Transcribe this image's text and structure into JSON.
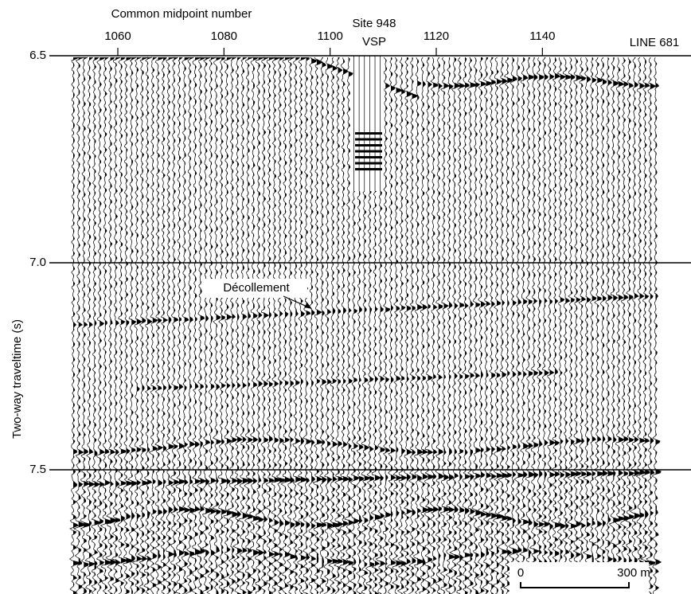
{
  "chart_data": {
    "type": "seismic",
    "x_label": "Common midpoint number",
    "y_label": "Two-way traveltime (s)",
    "xlim": [
      1051,
      1168
    ],
    "xticks": [
      1060,
      1080,
      1100,
      1120,
      1140
    ],
    "ylim": [
      6.5,
      7.8
    ],
    "y_inverted": true,
    "yticks": [
      6.5,
      {
        "value": 7,
        "label": "7.0"
      },
      7.5
    ],
    "grid": true,
    "site_label": "Site 948",
    "vsp_label": "VSP",
    "line_label": "LINE 681",
    "annotation": "Décollement",
    "scale_bar": {
      "start_label": "0",
      "end_label": "300 m"
    }
  }
}
